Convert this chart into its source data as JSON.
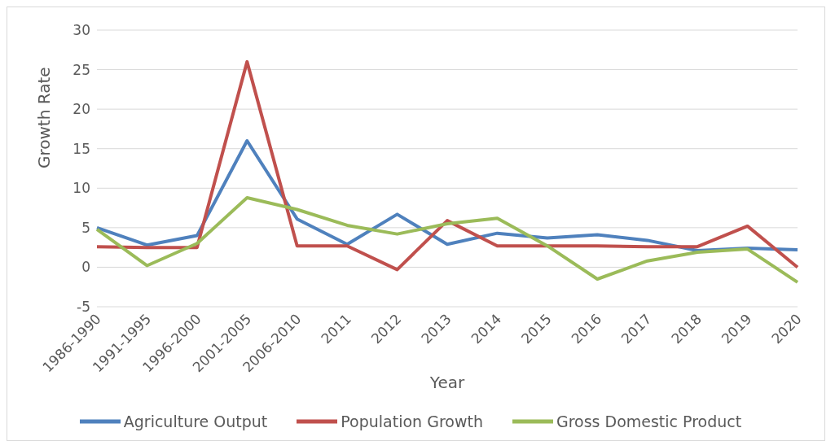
{
  "chart_data": {
    "type": "line",
    "xlabel": "Year",
    "ylabel": "Growth Rate",
    "categories": [
      "1986-1990",
      "1991-1995",
      "1996-2000",
      "2001-2005",
      "2006-2010",
      "2011",
      "2012",
      "2013",
      "2014",
      "2015",
      "2016",
      "2017",
      "2018",
      "2019",
      "2020"
    ],
    "series": [
      {
        "name": "Agriculture Output",
        "color": "#4f81bd",
        "values": [
          5,
          2.8,
          4,
          16,
          6.1,
          2.9,
          6.7,
          2.9,
          4.3,
          3.7,
          4.1,
          3.4,
          2.1,
          2.4,
          2.2
        ]
      },
      {
        "name": "Population Growth",
        "color": "#c0504d",
        "values": [
          2.6,
          2.5,
          2.5,
          26,
          2.7,
          2.7,
          -0.3,
          5.9,
          2.7,
          2.7,
          2.7,
          2.6,
          2.6,
          5.2,
          0
        ]
      },
      {
        "name": "Gross Domestic Product",
        "color": "#9bbb59",
        "values": [
          4.8,
          0.2,
          3,
          8.8,
          7.3,
          5.3,
          4.2,
          5.5,
          6.2,
          2.7,
          -1.5,
          0.8,
          1.9,
          2.3,
          -1.9
        ]
      }
    ],
    "ylim": [
      -5,
      30
    ],
    "yticks": [
      -5,
      0,
      5,
      10,
      15,
      20,
      25,
      30
    ],
    "grid": "y",
    "legend": "bottom",
    "marker": "none",
    "line_style": "solid"
  }
}
